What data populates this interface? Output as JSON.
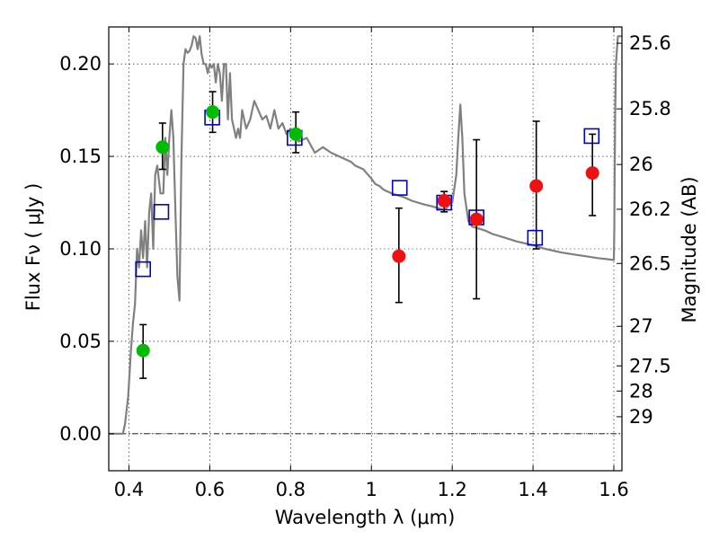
{
  "chart_data": {
    "type": "scatter",
    "title": "",
    "xlabel": "Wavelength  λ (μm)",
    "ylabel": "Flux  Fν  ( μJy )",
    "y2label": "Magnitude (AB)",
    "xlim": [
      0.35,
      1.62
    ],
    "ylim": [
      -0.02,
      0.22
    ],
    "grid": true,
    "x_ticks": [
      0.4,
      0.6,
      0.8,
      1.0,
      1.2,
      1.4,
      1.6
    ],
    "x_tick_labels": [
      "0.4",
      "0.6",
      "0.8",
      "1",
      "1.2",
      "1.4",
      "1.6"
    ],
    "y_ticks": [
      0.0,
      0.05,
      0.1,
      0.15,
      0.2
    ],
    "y_tick_labels": [
      "0.00",
      "0.05",
      "0.10",
      "0.15",
      "0.20"
    ],
    "y2_tick_labels": [
      "25.6",
      "25.8",
      "26",
      "26.2",
      "26.5",
      "27",
      "27.5",
      "28",
      "29"
    ],
    "y2_tick_values_flux": [
      0.2112,
      0.1757,
      0.1456,
      0.1214,
      0.0921,
      0.0581,
      0.0367,
      0.0231,
      0.0092
    ],
    "colors": {
      "model": "#808080",
      "green_points": "#00bb00",
      "red_points": "#ee1111",
      "model_photometry": "#0000cc",
      "errorbar": "#000000"
    },
    "series": [
      {
        "kind": "line",
        "x": [
          0.35,
          0.385,
          0.39,
          0.398,
          0.405,
          0.41,
          0.415,
          0.42,
          0.425,
          0.43,
          0.435,
          0.44,
          0.445,
          0.45,
          0.455,
          0.46,
          0.465,
          0.47,
          0.478,
          0.485,
          0.49,
          0.495,
          0.5,
          0.505,
          0.51,
          0.515,
          0.52,
          0.525,
          0.53,
          0.535,
          0.54,
          0.545,
          0.55,
          0.555,
          0.56,
          0.565,
          0.57,
          0.575,
          0.58,
          0.585,
          0.59,
          0.595,
          0.6,
          0.605,
          0.61,
          0.615,
          0.62,
          0.625,
          0.63,
          0.635,
          0.64,
          0.645,
          0.65,
          0.655,
          0.66,
          0.665,
          0.67,
          0.675,
          0.68,
          0.69,
          0.7,
          0.71,
          0.72,
          0.73,
          0.74,
          0.75,
          0.76,
          0.77,
          0.78,
          0.79,
          0.8,
          0.82,
          0.84,
          0.86,
          0.88,
          0.9,
          0.92,
          0.94,
          0.95,
          0.96,
          0.98,
          1.0,
          1.01,
          1.02,
          1.03,
          1.05,
          1.08,
          1.1,
          1.13,
          1.15,
          1.18,
          1.2,
          1.21,
          1.215,
          1.22,
          1.225,
          1.23,
          1.24,
          1.25,
          1.28,
          1.3,
          1.33,
          1.36,
          1.4,
          1.43,
          1.47,
          1.5,
          1.53,
          1.56,
          1.6,
          1.601,
          1.602,
          1.603,
          1.605,
          1.61,
          1.615,
          1.62
        ],
        "y": [
          0.0,
          0.0,
          0.005,
          0.02,
          0.045,
          0.06,
          0.07,
          0.1,
          0.09,
          0.11,
          0.095,
          0.115,
          0.09,
          0.12,
          0.13,
          0.1,
          0.14,
          0.145,
          0.13,
          0.13,
          0.16,
          0.14,
          0.16,
          0.175,
          0.16,
          0.12,
          0.085,
          0.072,
          0.15,
          0.2,
          0.208,
          0.206,
          0.207,
          0.21,
          0.215,
          0.214,
          0.208,
          0.215,
          0.205,
          0.2,
          0.2,
          0.195,
          0.2,
          0.198,
          0.2,
          0.19,
          0.2,
          0.195,
          0.18,
          0.2,
          0.2,
          0.17,
          0.195,
          0.17,
          0.165,
          0.16,
          0.165,
          0.16,
          0.175,
          0.165,
          0.17,
          0.18,
          0.175,
          0.17,
          0.172,
          0.165,
          0.175,
          0.165,
          0.168,
          0.162,
          0.165,
          0.158,
          0.16,
          0.152,
          0.155,
          0.152,
          0.15,
          0.148,
          0.147,
          0.145,
          0.143,
          0.138,
          0.135,
          0.134,
          0.132,
          0.13,
          0.128,
          0.126,
          0.124,
          0.123,
          0.121,
          0.125,
          0.14,
          0.16,
          0.178,
          0.16,
          0.13,
          0.115,
          0.112,
          0.11,
          0.108,
          0.106,
          0.104,
          0.102,
          0.1,
          0.098,
          0.097,
          0.096,
          0.095,
          0.094,
          0.11,
          0.14,
          0.17,
          0.2,
          0.215,
          0.215,
          0.215
        ]
      },
      {
        "kind": "points",
        "marker": "circle",
        "x": [
          0.435,
          0.483,
          0.607,
          0.813
        ],
        "y": [
          0.045,
          0.155,
          0.174,
          0.162
        ],
        "yerr_low": [
          0.03,
          0.143,
          0.163,
          0.152
        ],
        "yerr_high": [
          0.059,
          0.168,
          0.185,
          0.174
        ]
      },
      {
        "kind": "points",
        "marker": "circle",
        "x": [
          1.068,
          1.18,
          1.26,
          1.408,
          1.547
        ],
        "y": [
          0.096,
          0.126,
          0.116,
          0.134,
          0.141
        ],
        "yerr_low": [
          0.071,
          0.12,
          0.073,
          0.1,
          0.118
        ],
        "yerr_high": [
          0.122,
          0.131,
          0.159,
          0.169,
          0.162
        ]
      },
      {
        "kind": "points",
        "marker": "open-square",
        "x": [
          0.435,
          0.48,
          0.606,
          0.81,
          1.07,
          1.18,
          1.26,
          1.405,
          1.545
        ],
        "y": [
          0.089,
          0.12,
          0.171,
          0.16,
          0.133,
          0.125,
          0.117,
          0.106,
          0.161
        ]
      }
    ]
  }
}
